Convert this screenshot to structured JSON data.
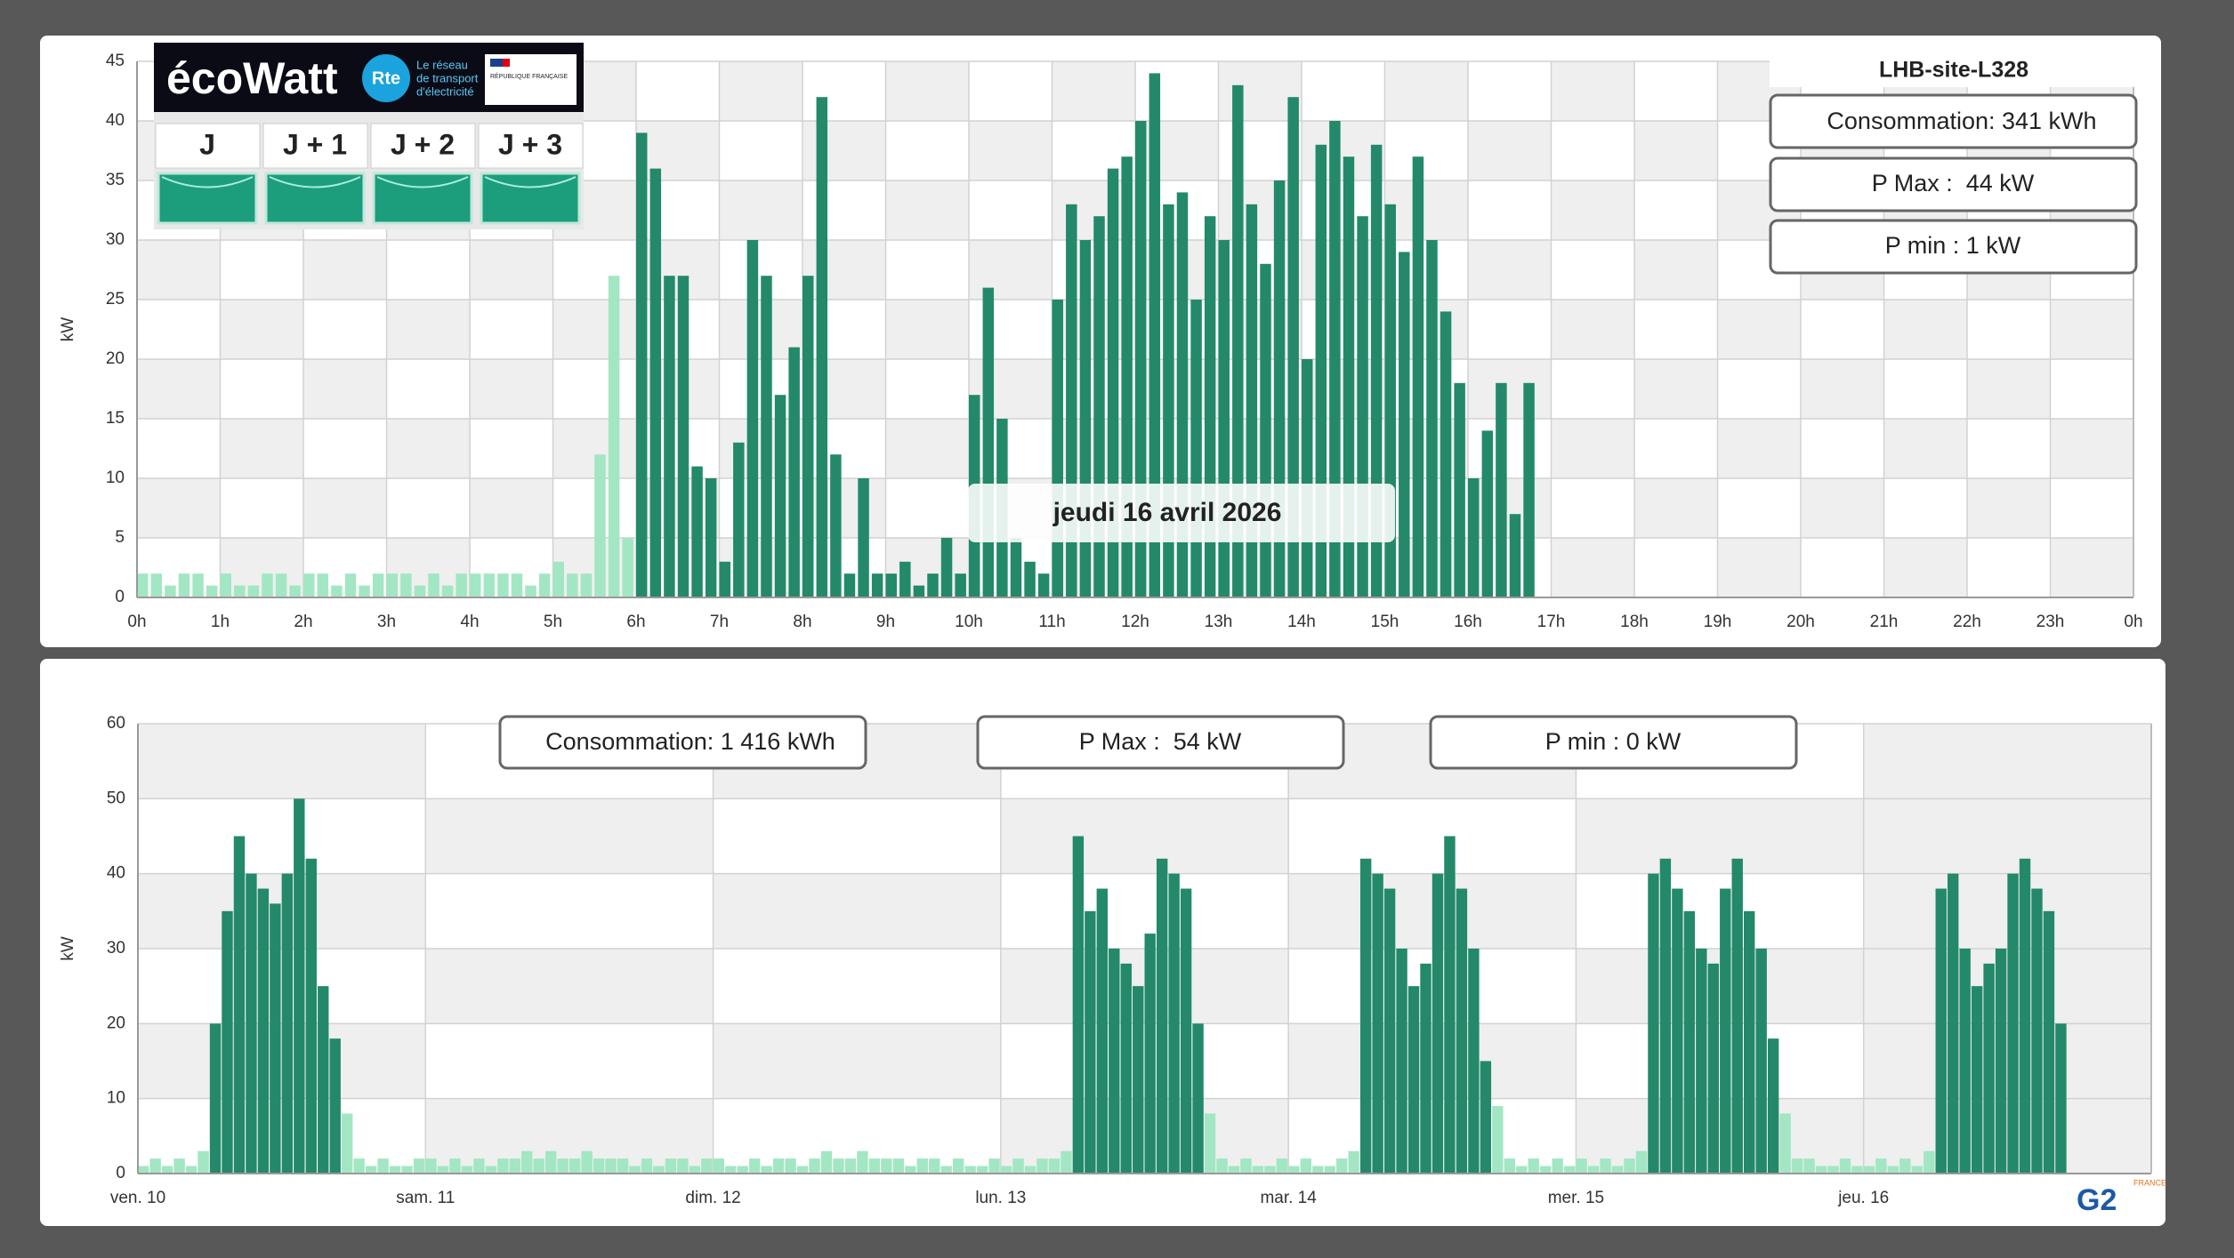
{
  "ecowatt": {
    "brand": "écoWatt",
    "operator_logo": "Rte",
    "operator_tagline": [
      "Le réseau",
      "de transport",
      "d'électricité"
    ],
    "partner": "RÉPUBLIQUE FRANÇAISE",
    "days": [
      "J",
      "J + 1",
      "J + 2",
      "J + 3"
    ]
  },
  "site_name": "LHB-site-L328",
  "daily_stats": [
    "Consommation: 341 kWh",
    "P Max :  44 kW",
    "P min : 1 kW"
  ],
  "date_label": "jeudi 16 avril 2026",
  "weekly_stats": [
    "Consommation: 1 416 kWh",
    "P Max :  54 kW",
    "P min : 0 kW"
  ],
  "footer_logo": {
    "text": "G2",
    "sub": "FRANCE"
  },
  "chart_data": [
    {
      "type": "bar",
      "ylabel": "kW",
      "grid": true,
      "xlim": [
        0,
        1440
      ],
      "xticks": [
        {
          "value": 0,
          "label": "0h"
        },
        {
          "value": 60,
          "label": "1h"
        },
        {
          "value": 120,
          "label": "2h"
        },
        {
          "value": 180,
          "label": "3h"
        },
        {
          "value": 240,
          "label": "4h"
        },
        {
          "value": 300,
          "label": "5h"
        },
        {
          "value": 360,
          "label": "6h"
        },
        {
          "value": 420,
          "label": "7h"
        },
        {
          "value": 480,
          "label": "8h"
        },
        {
          "value": 540,
          "label": "9h"
        },
        {
          "value": 600,
          "label": "10h"
        },
        {
          "value": 660,
          "label": "11h"
        },
        {
          "value": 720,
          "label": "12h"
        },
        {
          "value": 780,
          "label": "13h"
        },
        {
          "value": 840,
          "label": "14h"
        },
        {
          "value": 900,
          "label": "15h"
        },
        {
          "value": 960,
          "label": "16h"
        },
        {
          "value": 1020,
          "label": "17h"
        },
        {
          "value": 1080,
          "label": "18h"
        },
        {
          "value": 1140,
          "label": "19h"
        },
        {
          "value": 1200,
          "label": "20h"
        },
        {
          "value": 1260,
          "label": "21h"
        },
        {
          "value": 1320,
          "label": "22h"
        },
        {
          "value": 1380,
          "label": "23h"
        },
        {
          "value": 1440,
          "label": "0h"
        }
      ],
      "ylim": [
        0,
        45
      ],
      "yticks": [
        0,
        5,
        10,
        15,
        20,
        25,
        30,
        35,
        40,
        45
      ],
      "series": [
        {
          "color": "#a3e6c3",
          "x": [
            0,
            10,
            20,
            30,
            40,
            50,
            60,
            70,
            80,
            90,
            100,
            110,
            120,
            130,
            140,
            150,
            160,
            170,
            180,
            190,
            200,
            210,
            220,
            230,
            240,
            250,
            260,
            270,
            280,
            290,
            300,
            310,
            320,
            330,
            340,
            350
          ],
          "values": [
            2,
            2,
            1,
            2,
            2,
            1,
            2,
            1,
            1,
            2,
            2,
            1,
            2,
            2,
            1,
            2,
            1,
            2,
            2,
            2,
            1,
            2,
            1,
            2,
            2,
            2,
            2,
            2,
            1,
            2,
            3,
            2,
            2,
            12,
            27,
            5
          ]
        },
        {
          "color": "#23896a",
          "x": [
            360,
            370,
            380,
            390,
            400,
            410,
            420,
            430,
            440,
            450,
            460,
            470,
            480,
            490,
            500,
            510,
            520,
            530,
            540,
            550,
            560,
            570,
            580,
            590,
            600,
            610,
            620,
            630,
            640,
            650,
            660,
            670,
            680,
            690,
            700,
            710,
            720,
            730,
            740,
            750,
            760,
            770,
            780,
            790,
            800,
            810,
            820,
            830,
            840,
            850,
            860,
            870,
            880,
            890,
            900,
            910,
            920,
            930,
            940,
            950,
            960,
            970,
            980,
            990,
            1000
          ],
          "values": [
            39,
            36,
            27,
            27,
            11,
            10,
            3,
            13,
            30,
            27,
            17,
            21,
            27,
            42,
            12,
            2,
            10,
            2,
            2,
            3,
            1,
            2,
            5,
            2,
            17,
            26,
            15,
            5,
            3,
            2,
            25,
            33,
            30,
            32,
            36,
            37,
            40,
            44,
            33,
            34,
            25,
            32,
            30,
            43,
            33,
            28,
            35,
            42,
            20,
            38,
            40,
            37,
            32,
            38,
            33,
            29,
            37,
            30,
            24,
            18,
            10,
            14,
            18,
            7,
            18
          ]
        }
      ]
    },
    {
      "type": "bar",
      "ylabel": "kW",
      "grid": true,
      "xlim": [
        0,
        168
      ],
      "xticks": [
        {
          "value": 0,
          "label": "ven. 10"
        },
        {
          "value": 24,
          "label": "sam. 11"
        },
        {
          "value": 48,
          "label": "dim. 12"
        },
        {
          "value": 72,
          "label": "lun. 13"
        },
        {
          "value": 96,
          "label": "mar. 14"
        },
        {
          "value": 120,
          "label": "mer. 15"
        },
        {
          "value": 144,
          "label": "jeu. 16"
        }
      ],
      "ylim": [
        0,
        60
      ],
      "yticks": [
        0,
        10,
        20,
        30,
        40,
        50,
        60
      ],
      "series": [
        {
          "color": "#a3e6c3",
          "x": [
            0,
            1,
            2,
            3,
            4,
            5,
            17,
            18,
            19,
            20,
            21,
            22,
            23,
            24,
            25,
            26,
            27,
            28,
            29,
            30,
            31,
            32,
            33,
            34,
            35,
            36,
            37,
            38,
            39,
            40,
            41,
            42,
            43,
            44,
            45,
            46,
            47,
            48,
            49,
            50,
            51,
            52,
            53,
            54,
            55,
            56,
            57,
            58,
            59,
            60,
            61,
            62,
            63,
            64,
            65,
            66,
            67,
            68,
            69,
            70,
            71,
            72,
            73,
            74,
            75,
            76,
            77,
            89,
            90,
            91,
            92,
            93,
            94,
            95,
            96,
            97,
            98,
            99,
            100,
            101,
            113,
            114,
            115,
            116,
            117,
            118,
            119,
            120,
            121,
            122,
            123,
            124,
            125,
            137,
            138,
            139,
            140,
            141,
            142,
            143,
            144,
            145,
            146,
            147,
            148,
            149
          ],
          "values": [
            1,
            2,
            1,
            2,
            1,
            3,
            8,
            2,
            1,
            2,
            1,
            1,
            2,
            2,
            1,
            2,
            1,
            2,
            1,
            2,
            2,
            3,
            2,
            3,
            2,
            2,
            3,
            2,
            2,
            2,
            1,
            2,
            1,
            2,
            2,
            1,
            2,
            2,
            1,
            1,
            2,
            1,
            2,
            2,
            1,
            2,
            3,
            2,
            2,
            3,
            2,
            2,
            2,
            1,
            2,
            2,
            1,
            2,
            1,
            1,
            2,
            1,
            2,
            1,
            2,
            2,
            3,
            8,
            2,
            1,
            2,
            1,
            1,
            2,
            1,
            2,
            1,
            1,
            2,
            3,
            9,
            2,
            1,
            2,
            1,
            2,
            1,
            2,
            1,
            2,
            1,
            2,
            3,
            8,
            2,
            2,
            1,
            1,
            2,
            1,
            1,
            2,
            1,
            2,
            1,
            3
          ]
        },
        {
          "color": "#23896a",
          "x": [
            6,
            7,
            8,
            9,
            10,
            11,
            12,
            13,
            14,
            15,
            16,
            78,
            79,
            80,
            81,
            82,
            83,
            84,
            85,
            86,
            87,
            88,
            102,
            103,
            104,
            105,
            106,
            107,
            108,
            109,
            110,
            111,
            112,
            126,
            127,
            128,
            129,
            130,
            131,
            132,
            133,
            134,
            135,
            136,
            150,
            151,
            152,
            153,
            154,
            155,
            156,
            157,
            158,
            159,
            160
          ],
          "values": [
            20,
            35,
            45,
            40,
            38,
            36,
            40,
            50,
            42,
            25,
            18,
            45,
            35,
            38,
            30,
            28,
            25,
            32,
            42,
            40,
            38,
            20,
            42,
            40,
            38,
            30,
            25,
            28,
            40,
            45,
            38,
            30,
            15,
            40,
            42,
            38,
            35,
            30,
            28,
            38,
            42,
            35,
            30,
            18,
            38,
            40,
            30,
            25,
            28,
            30,
            40,
            42,
            38,
            35,
            20
          ]
        }
      ]
    }
  ]
}
